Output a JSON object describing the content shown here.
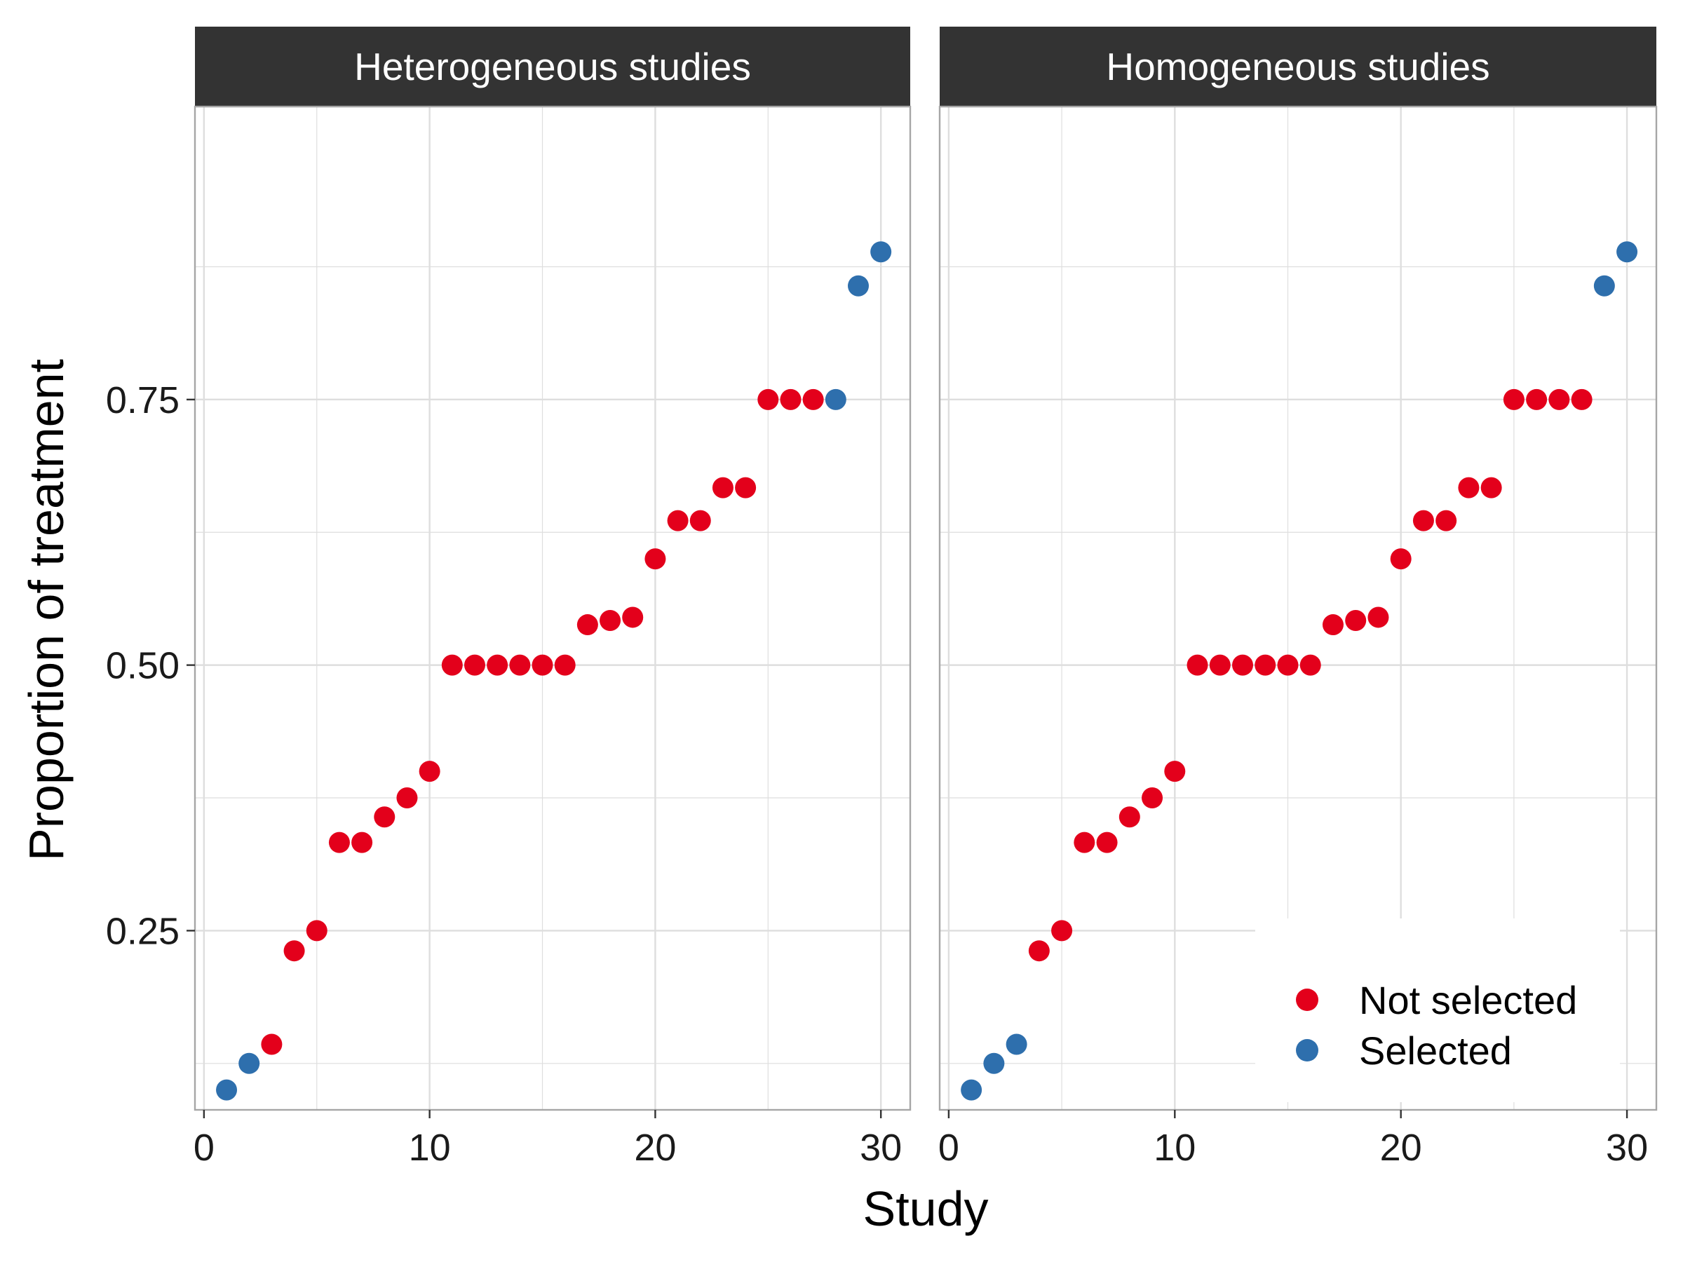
{
  "chart_data": {
    "type": "scatter",
    "xlabel": "Study",
    "ylabel": "Proportion of treatment",
    "xlim": [
      -0.4,
      31.3
    ],
    "ylim": [
      0.0813,
      1.0258
    ],
    "x_ticks": [
      0,
      10,
      20,
      30
    ],
    "x_tick_labels": [
      "0",
      "10",
      "20",
      "30"
    ],
    "y_ticks": [
      0.25,
      0.5,
      0.75
    ],
    "y_tick_labels": [
      "0.25",
      "0.50",
      "0.75"
    ],
    "y_minor_ticks": [
      0.125,
      0.375,
      0.625,
      0.875
    ],
    "grid": true,
    "legend": {
      "position": "bottom-right",
      "entries": [
        {
          "label": "Not selected",
          "color": "#e3001b"
        },
        {
          "label": "Selected",
          "color": "#2e6fad"
        }
      ]
    },
    "colors": {
      "strip": "#333333",
      "grid": "#dedede",
      "border": "#a6a6a6"
    },
    "panels": [
      {
        "title": "Heterogeneous studies",
        "x": [
          1,
          2,
          3,
          4,
          5,
          6,
          7,
          8,
          9,
          10,
          11,
          12,
          13,
          14,
          15,
          16,
          17,
          18,
          19,
          20,
          21,
          22,
          23,
          24,
          25,
          26,
          27,
          28,
          29,
          30
        ],
        "y": [
          0.1,
          0.125,
          0.143,
          0.231,
          0.25,
          0.333,
          0.333,
          0.357,
          0.375,
          0.4,
          0.5,
          0.5,
          0.5,
          0.5,
          0.5,
          0.5,
          0.538,
          0.542,
          0.545,
          0.6,
          0.636,
          0.636,
          0.667,
          0.667,
          0.75,
          0.75,
          0.75,
          0.75,
          0.857,
          0.889
        ],
        "group": [
          "Selected",
          "Selected",
          "Not selected",
          "Not selected",
          "Not selected",
          "Not selected",
          "Not selected",
          "Not selected",
          "Not selected",
          "Not selected",
          "Not selected",
          "Not selected",
          "Not selected",
          "Not selected",
          "Not selected",
          "Not selected",
          "Not selected",
          "Not selected",
          "Not selected",
          "Not selected",
          "Not selected",
          "Not selected",
          "Not selected",
          "Not selected",
          "Not selected",
          "Not selected",
          "Not selected",
          "Selected",
          "Selected",
          "Selected"
        ]
      },
      {
        "title": "Homogeneous studies",
        "x": [
          1,
          2,
          3,
          4,
          5,
          6,
          7,
          8,
          9,
          10,
          11,
          12,
          13,
          14,
          15,
          16,
          17,
          18,
          19,
          20,
          21,
          22,
          23,
          24,
          25,
          26,
          27,
          28,
          29,
          30
        ],
        "y": [
          0.1,
          0.125,
          0.143,
          0.231,
          0.25,
          0.333,
          0.333,
          0.357,
          0.375,
          0.4,
          0.5,
          0.5,
          0.5,
          0.5,
          0.5,
          0.5,
          0.538,
          0.542,
          0.545,
          0.6,
          0.636,
          0.636,
          0.667,
          0.667,
          0.75,
          0.75,
          0.75,
          0.75,
          0.857,
          0.889
        ],
        "group": [
          "Selected",
          "Selected",
          "Selected",
          "Not selected",
          "Not selected",
          "Not selected",
          "Not selected",
          "Not selected",
          "Not selected",
          "Not selected",
          "Not selected",
          "Not selected",
          "Not selected",
          "Not selected",
          "Not selected",
          "Not selected",
          "Not selected",
          "Not selected",
          "Not selected",
          "Not selected",
          "Not selected",
          "Not selected",
          "Not selected",
          "Not selected",
          "Not selected",
          "Not selected",
          "Not selected",
          "Not selected",
          "Selected",
          "Selected"
        ]
      }
    ]
  }
}
